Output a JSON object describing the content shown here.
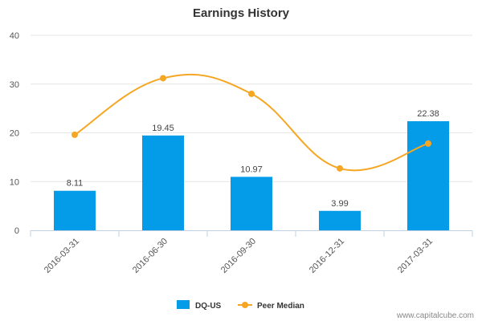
{
  "chart_data": {
    "type": "bar",
    "title": "Earnings History",
    "categories": [
      "2016-03-31",
      "2016-06-30",
      "2016-09-30",
      "2016-12-31",
      "2017-03-31"
    ],
    "ylim": [
      0,
      40
    ],
    "yticks": [
      0,
      10,
      20,
      30,
      40
    ],
    "series": [
      {
        "name": "DQ-US",
        "type": "bar",
        "color": "#049ce8",
        "values": [
          8.11,
          19.45,
          10.97,
          3.99,
          22.38
        ],
        "data_labels": [
          "8.11",
          "19.45",
          "10.97",
          "3.99",
          "22.38"
        ]
      },
      {
        "name": "Peer Median",
        "type": "line",
        "color": "#f5a623",
        "values": [
          19.6,
          31.2,
          28.0,
          12.7,
          17.8
        ]
      }
    ],
    "legend": "bottom-center"
  },
  "credit": "www.capitalcube.com"
}
